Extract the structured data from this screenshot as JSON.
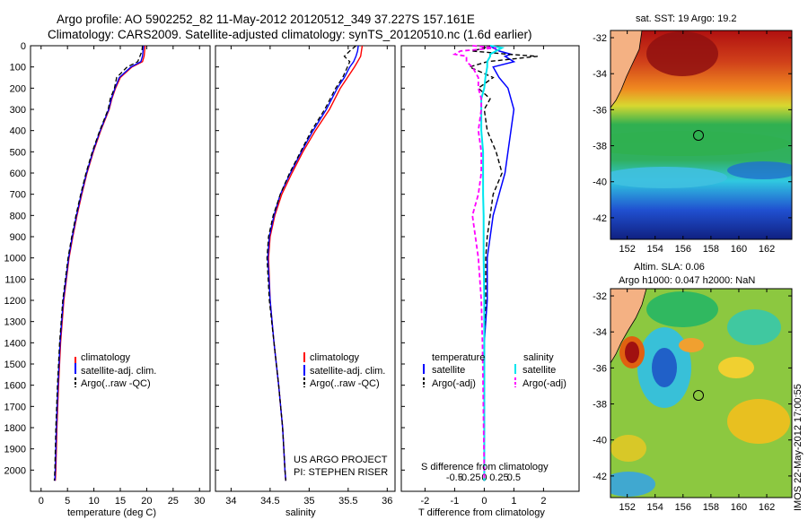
{
  "header": {
    "line1": "Argo profile: AO 5902252_82 11-May-2012 20120512_349 37.227S 157.161E",
    "line2": "Climatology: CARS2009. Satellite-adjusted climatology: synTS_20120510.nc (1.6d earlier)"
  },
  "colors": {
    "clim": "#ff0000",
    "sat": "#0000ff",
    "argo": "#000000",
    "sal_sat": "#00e5ee",
    "sal_argo": "#ff00ff",
    "land": "#f4b183",
    "circle": "#000000"
  },
  "chart_data": [
    {
      "type": "line",
      "id": "temperature",
      "xlabel": "temperature (deg C)",
      "ylabel": "",
      "xlim": [
        -2,
        32
      ],
      "ylim": [
        2100,
        0
      ],
      "x_ticks": [
        0,
        5,
        10,
        15,
        20,
        25,
        30
      ],
      "y_ticks": [
        0,
        100,
        200,
        300,
        400,
        500,
        600,
        700,
        800,
        900,
        1000,
        1100,
        1200,
        1300,
        1400,
        1500,
        1600,
        1700,
        1800,
        1900,
        2000
      ],
      "depth": [
        0,
        25,
        50,
        75,
        100,
        150,
        200,
        250,
        300,
        400,
        500,
        600,
        700,
        800,
        900,
        1000,
        1200,
        1400,
        1600,
        1800,
        2000,
        2050
      ],
      "series": [
        {
          "name": "climatology",
          "values": [
            19.7,
            19.6,
            19.5,
            19.2,
            17.2,
            15.0,
            14.1,
            13.4,
            12.9,
            11.3,
            9.9,
            8.7,
            7.7,
            6.8,
            6.0,
            5.3,
            4.3,
            3.7,
            3.3,
            3.0,
            2.8,
            2.7
          ]
        },
        {
          "name": "satellite-adj. clim.",
          "values": [
            19.4,
            19.3,
            19.2,
            18.9,
            17.0,
            14.8,
            14.0,
            13.3,
            12.8,
            11.2,
            9.8,
            8.6,
            7.6,
            6.7,
            5.9,
            5.2,
            4.2,
            3.6,
            3.2,
            2.9,
            2.7,
            2.6
          ]
        },
        {
          "name": "Argo(..raw -QC)",
          "values": [
            19.2,
            19.1,
            18.7,
            18.3,
            16.3,
            14.3,
            13.9,
            13.1,
            12.7,
            11.1,
            9.7,
            8.5,
            7.5,
            6.6,
            5.8,
            5.1,
            4.1,
            3.5,
            3.1,
            2.8,
            2.6,
            2.5
          ]
        }
      ],
      "legend": [
        "climatology",
        "satellite-adj. clim.",
        "Argo(..raw -QC)"
      ]
    },
    {
      "type": "line",
      "id": "salinity",
      "xlabel": "salinity",
      "xlim": [
        33.8,
        36.1
      ],
      "ylim": [
        2100,
        0
      ],
      "x_ticks": [
        34,
        34.5,
        35,
        35.5,
        36
      ],
      "x_tick_labels": [
        "34",
        "34.5",
        "35",
        "35.5",
        "36"
      ],
      "depth": [
        0,
        25,
        50,
        75,
        100,
        150,
        200,
        250,
        300,
        400,
        500,
        600,
        700,
        800,
        900,
        1000,
        1200,
        1400,
        1600,
        1800,
        2000,
        2050
      ],
      "series": [
        {
          "name": "climatology",
          "values": [
            35.68,
            35.67,
            35.66,
            35.62,
            35.58,
            35.49,
            35.4,
            35.33,
            35.26,
            35.08,
            34.92,
            34.78,
            34.65,
            34.56,
            34.5,
            34.48,
            34.5,
            34.55,
            34.61,
            34.66,
            34.69,
            34.7
          ]
        },
        {
          "name": "satellite-adj. clim.",
          "values": [
            35.63,
            35.62,
            35.6,
            35.57,
            35.52,
            35.45,
            35.36,
            35.29,
            35.22,
            35.05,
            34.9,
            34.76,
            34.63,
            34.55,
            34.49,
            34.47,
            34.5,
            34.55,
            34.61,
            34.66,
            34.69,
            34.7
          ]
        },
        {
          "name": "Argo(..raw -QC)",
          "values": [
            35.6,
            35.52,
            35.45,
            35.52,
            35.49,
            35.43,
            35.34,
            35.27,
            35.2,
            35.03,
            34.89,
            34.75,
            34.63,
            34.54,
            34.48,
            34.46,
            34.49,
            34.55,
            34.61,
            34.66,
            34.69,
            34.7
          ]
        }
      ],
      "legend": [
        "climatology",
        "satellite-adj. clim.",
        "Argo(..raw -QC)"
      ],
      "annotation": [
        "US ARGO PROJECT",
        "PI: STEPHEN RISER"
      ]
    },
    {
      "type": "line",
      "id": "differences",
      "xlabel": "T difference from climatology",
      "xlabel_top": "S difference from climatology",
      "xlim": [
        -2.8,
        3.2
      ],
      "ylim": [
        2100,
        0
      ],
      "x_ticks": [
        -2,
        -1,
        0,
        1,
        2
      ],
      "x_ticks_S": [
        -0.5,
        -0.25,
        0,
        0.25,
        0.5
      ],
      "x_tick_labels_S": [
        "-0.5",
        "-0.25",
        "0",
        "0.25",
        "0.5"
      ],
      "depth": [
        0,
        10,
        25,
        40,
        50,
        75,
        100,
        150,
        200,
        250,
        300,
        400,
        500,
        600,
        700,
        800,
        900,
        1000,
        1200,
        1400,
        1600,
        1800,
        2000,
        2050
      ],
      "series": [
        {
          "name": "temperature satellite",
          "values": [
            0.2,
            0.3,
            0.5,
            0.9,
            0.7,
            1.0,
            0.3,
            0.5,
            0.8,
            0.9,
            1.0,
            0.9,
            0.8,
            0.7,
            0.5,
            0.3,
            0.2,
            0.1,
            0.1,
            0.0,
            0.0,
            0.0,
            0.0,
            0.0
          ]
        },
        {
          "name": "temperature Argo(-adj)",
          "values": [
            0.3,
            0.0,
            -0.4,
            0.8,
            1.8,
            0.1,
            -0.5,
            0.3,
            -0.2,
            0.2,
            0.0,
            0.1,
            0.4,
            0.6,
            0.3,
            0.2,
            0.1,
            0.05,
            0.05,
            0.0,
            0.0,
            0.0,
            0.0,
            0.0
          ]
        },
        {
          "name": "salinity satellite",
          "values": [
            0.1,
            0.3,
            0.2,
            0.1,
            0.1,
            0.05,
            0.05,
            0.02,
            0.0,
            -0.05,
            -0.05,
            -0.05,
            -0.02,
            -0.02,
            -0.02,
            -0.01,
            -0.01,
            -0.01,
            0.0,
            0.0,
            0.0,
            0.0,
            0.0,
            0.0
          ]
        },
        {
          "name": "salinity Argo(-adj)",
          "values": [
            -0.2,
            0.2,
            -0.4,
            -0.5,
            -0.3,
            -0.3,
            -0.2,
            -0.1,
            -0.1,
            -0.05,
            -0.05,
            -0.1,
            -0.05,
            -0.05,
            -0.1,
            -0.2,
            -0.15,
            -0.1,
            -0.05,
            -0.03,
            -0.02,
            -0.01,
            0.0,
            0.0
          ]
        }
      ],
      "legend_temperature_title": "temperature",
      "legend_salinity_title": "salinity",
      "legend": [
        "satellite",
        "Argo(-adj)",
        "satellite",
        "Argo(-adj)"
      ]
    },
    {
      "type": "heatmap",
      "id": "sst_map",
      "title": "sat. SST: 19 Argo: 19.2",
      "x_ticks": [
        152,
        154,
        156,
        158,
        160,
        162
      ],
      "y_ticks": [
        -32,
        -34,
        -36,
        -38,
        -40,
        -42
      ],
      "xlim": [
        150.8,
        163.8
      ],
      "ylim": [
        -43.2,
        -31.6
      ],
      "argo_position": [
        157.161,
        -37.227
      ]
    },
    {
      "type": "heatmap",
      "id": "sla_map",
      "title_line1": "Altim. SLA: 0.06",
      "title_line2": "Argo h1000: 0.047 h2000: NaN",
      "x_ticks": [
        152,
        154,
        156,
        158,
        160,
        162
      ],
      "y_ticks": [
        -32,
        -34,
        -36,
        -38,
        -40,
        -42
      ],
      "xlim": [
        150.8,
        163.8
      ],
      "ylim": [
        -43.2,
        -31.6
      ],
      "argo_position": [
        157.161,
        -37.227
      ]
    }
  ],
  "footer_stamp": "IMOS 22-May-2012 17:00:55"
}
